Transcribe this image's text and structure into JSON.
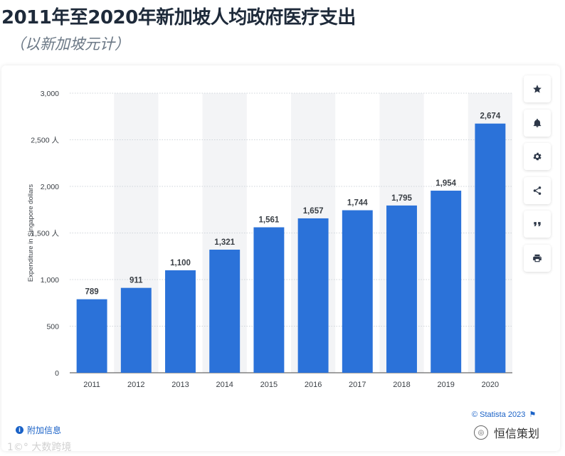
{
  "header": {
    "title": "2011年至2020年新加坡人均政府医疗支出",
    "subtitle": "（以新加坡元计）"
  },
  "toolbar": {
    "buttons": [
      {
        "name": "favorite-button",
        "icon": "star-icon"
      },
      {
        "name": "notification-button",
        "icon": "bell-icon"
      },
      {
        "name": "settings-button",
        "icon": "gear-icon"
      },
      {
        "name": "share-button",
        "icon": "share-icon"
      },
      {
        "name": "cite-button",
        "icon": "quote-icon"
      },
      {
        "name": "print-button",
        "icon": "printer-icon"
      }
    ]
  },
  "footer": {
    "more_info": "附加信息",
    "copyright": "© Statista 2023",
    "watermark_left": "1©° 大数跨境",
    "watermark_right": "恒信策划"
  },
  "colors": {
    "bar": "#2b72d9",
    "band": "#f3f4f6",
    "grid": "#cfd4da",
    "text": "#3a3f45",
    "link": "#1a62c7"
  },
  "chart_data": {
    "type": "bar",
    "categories": [
      "2011",
      "2012",
      "2013",
      "2014",
      "2015",
      "2016",
      "2017",
      "2018",
      "2019",
      "2020"
    ],
    "values": [
      789,
      911,
      1100,
      1321,
      1561,
      1657,
      1744,
      1795,
      1954,
      2674
    ],
    "value_labels": [
      "789",
      "911",
      "1,100",
      "1,321",
      "1,561",
      "1,657",
      "1,744",
      "1,795",
      "1,954",
      "2,674"
    ],
    "ylabel": "Expenditure in Singapore dollars",
    "ylim": [
      0,
      3000
    ],
    "yticks": [
      0,
      500,
      1000,
      1500,
      2000,
      2500,
      3000
    ],
    "ytick_labels": [
      "0",
      "500",
      "1,000",
      "1,500 人",
      "2,000",
      "2,500 人",
      "3,000"
    ],
    "grid": true,
    "legend": false
  }
}
